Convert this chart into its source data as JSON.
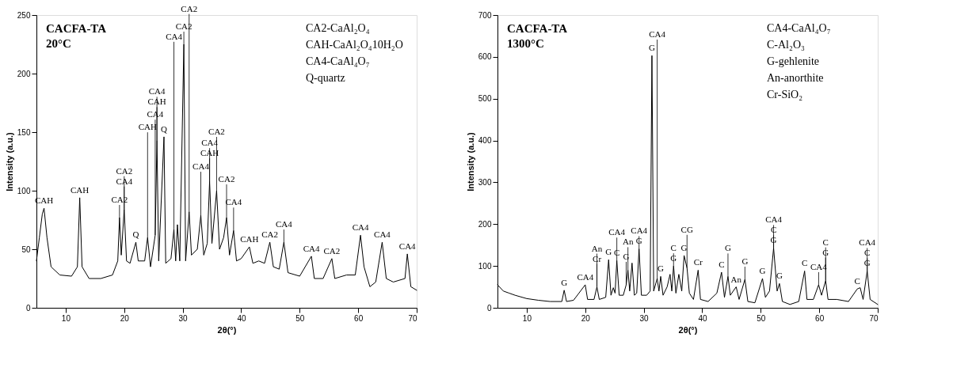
{
  "chart_data": [
    {
      "type": "line",
      "title": "CACFA-TA",
      "subtitle": "20°C",
      "xlabel": "2θ(°)",
      "ylabel": "Intensity (a.u.)",
      "xlim": [
        5,
        70
      ],
      "ylim": [
        0,
        250
      ],
      "xticks": [
        10,
        20,
        30,
        40,
        50,
        60,
        70
      ],
      "yticks": [
        0,
        50,
        100,
        150,
        200,
        250
      ],
      "grid": false,
      "series": [
        {
          "color": "#000000",
          "x": [
            5,
            5.5,
            6,
            6.3,
            6.8,
            7.5,
            9,
            11,
            12,
            12.4,
            12.8,
            14,
            16,
            18,
            18.9,
            19.2,
            19.5,
            20,
            20.4,
            21,
            22,
            22.4,
            23.5,
            24,
            24.5,
            25.3,
            25.6,
            25.9,
            26.8,
            27.1,
            28,
            28.5,
            28.8,
            29.1,
            29.5,
            30.2,
            30.5,
            31.1,
            31.5,
            32.5,
            33.1,
            33.6,
            34.2,
            34.6,
            35,
            35.8,
            36.3,
            37,
            37.5,
            38,
            38.7,
            39.2,
            40,
            41.4,
            42,
            43,
            44,
            44.9,
            45.5,
            46.5,
            47.3,
            48,
            50,
            52,
            52.5,
            54,
            55.5,
            56,
            58,
            59.5,
            60.4,
            61,
            62,
            63,
            64.1,
            64.8,
            66,
            68,
            68.4,
            69,
            70
          ],
          "values": [
            40,
            60,
            80,
            85,
            60,
            35,
            28,
            27,
            35,
            94,
            35,
            25,
            25,
            28,
            40,
            77,
            45,
            84,
            40,
            38,
            56,
            40,
            40,
            60,
            35,
            62,
            143,
            40,
            146,
            38,
            42,
            67,
            40,
            71,
            40,
            225,
            40,
            82,
            45,
            50,
            79,
            45,
            55,
            108,
            55,
            100,
            50,
            60,
            77,
            45,
            66,
            40,
            42,
            52,
            38,
            40,
            38,
            56,
            35,
            33,
            56,
            30,
            27,
            44,
            25,
            25,
            42,
            25,
            28,
            28,
            62,
            35,
            18,
            22,
            56,
            25,
            22,
            25,
            46,
            18,
            15
          ]
        }
      ],
      "annotations": [
        "CA2-CaAl₂O₄",
        "CAH-CaAl₂O₄10H₂O",
        "CA4-CaAl₄O₇",
        "Q-quartz",
        {
          "text": "CAH",
          "x": 6.3,
          "y": 85
        },
        {
          "text": "CAH",
          "x": 12.4,
          "y": 94
        },
        {
          "text": "CA2",
          "x": 19.2,
          "y": 77
        },
        {
          "text": "CA4",
          "x": 20.0,
          "y": 84
        },
        {
          "text": "CA2",
          "x": 20.0,
          "y": 84
        },
        {
          "text": "Q",
          "x": 22.0,
          "y": 56
        },
        {
          "text": "CAH",
          "x": 24.0,
          "y": 60
        },
        {
          "text": "CA4",
          "x": 25.3,
          "y": 62
        },
        {
          "text": "CAH",
          "x": 25.6,
          "y": 143
        },
        {
          "text": "CA4",
          "x": 25.6,
          "y": 143
        },
        {
          "text": "Q",
          "x": 26.8,
          "y": 146
        },
        {
          "text": "CA4",
          "x": 28.5,
          "y": 67
        },
        {
          "text": "CA2",
          "x": 30.2,
          "y": 225
        },
        {
          "text": "CA2",
          "x": 31.1,
          "y": 82
        },
        {
          "text": "CA4",
          "x": 33.1,
          "y": 79
        },
        {
          "text": "CAH",
          "x": 34.6,
          "y": 108
        },
        {
          "text": "CA4",
          "x": 34.6,
          "y": 108
        },
        {
          "text": "CA2",
          "x": 35.8,
          "y": 100
        },
        {
          "text": "CA2",
          "x": 37.5,
          "y": 77
        },
        {
          "text": "CA4",
          "x": 38.7,
          "y": 66
        },
        {
          "text": "CAH",
          "x": 41.4,
          "y": 52
        },
        {
          "text": "CA2",
          "x": 44.9,
          "y": 56
        },
        {
          "text": "CA4",
          "x": 47.3,
          "y": 56
        },
        {
          "text": "CA4",
          "x": 52.0,
          "y": 44
        },
        {
          "text": "CA2",
          "x": 55.5,
          "y": 42
        },
        {
          "text": "CA4",
          "x": 60.4,
          "y": 62
        },
        {
          "text": "CA4",
          "x": 64.1,
          "y": 56
        },
        {
          "text": "CA4",
          "x": 68.4,
          "y": 46
        }
      ]
    },
    {
      "type": "line",
      "title": "CACFA-TA",
      "subtitle": "1300°C",
      "xlabel": "2θ(°)",
      "ylabel": "Intensity (a.u.)",
      "xlim": [
        5,
        70
      ],
      "ylim": [
        0,
        700
      ],
      "xticks": [
        10,
        20,
        30,
        40,
        50,
        60,
        70
      ],
      "yticks": [
        0,
        100,
        200,
        300,
        400,
        500,
        600,
        700
      ],
      "grid": false,
      "series": [
        {
          "color": "#000000",
          "x": [
            5,
            6,
            7,
            8,
            10,
            12,
            14,
            16,
            16.4,
            16.8,
            18,
            20,
            20.4,
            21.5,
            22,
            22.4,
            23.5,
            24,
            24.4,
            24.8,
            25.1,
            25.4,
            25.8,
            26.5,
            27,
            27.3,
            27.6,
            28,
            28.4,
            28.8,
            29.2,
            29.6,
            30.5,
            31.1,
            31.4,
            31.7,
            32.3,
            32.6,
            32.9,
            33.3,
            34,
            34.5,
            34.8,
            35.1,
            35.5,
            36,
            36.5,
            36.9,
            37.4,
            37.8,
            38.5,
            39.3,
            39.7,
            41,
            42.5,
            43.3,
            43.8,
            44.4,
            44.8,
            45.8,
            46.3,
            47.3,
            47.8,
            49,
            50.3,
            50.8,
            51.5,
            52.2,
            52.8,
            53.2,
            53.7,
            55,
            56.5,
            57.5,
            57.9,
            59,
            59.9,
            60.4,
            61.1,
            61.5,
            63,
            65,
            66.5,
            67,
            67.5,
            68.2,
            68.7,
            70
          ],
          "values": [
            55,
            40,
            35,
            30,
            22,
            18,
            15,
            15,
            42,
            15,
            18,
            55,
            20,
            20,
            50,
            20,
            25,
            115,
            30,
            48,
            35,
            113,
            30,
            30,
            55,
            90,
            40,
            107,
            30,
            35,
            141,
            30,
            30,
            40,
            603,
            40,
            70,
            40,
            75,
            30,
            50,
            80,
            40,
            100,
            35,
            80,
            40,
            125,
            95,
            35,
            20,
            90,
            20,
            15,
            35,
            85,
            25,
            75,
            30,
            50,
            20,
            68,
            15,
            12,
            70,
            25,
            40,
            143,
            40,
            58,
            15,
            8,
            15,
            88,
            20,
            20,
            55,
            30,
            65,
            20,
            20,
            15,
            45,
            48,
            20,
            88,
            20,
            8
          ]
        }
      ],
      "annotations": [
        "CA4-CaAl₄O₇",
        "C-Al₂O₃",
        "G-gehlenite",
        "An-anorthite",
        "Cr-SiO₂",
        {
          "text": "G",
          "x": 16.4,
          "y": 42
        },
        {
          "text": "CA4",
          "x": 20.0,
          "y": 55
        },
        {
          "text": "Cr",
          "x": 22.0,
          "y": 50
        },
        {
          "text": "An",
          "x": 22.0,
          "y": 50
        },
        {
          "text": "G",
          "x": 24.0,
          "y": 115
        },
        {
          "text": "C",
          "x": 25.4,
          "y": 113
        },
        {
          "text": "CA4",
          "x": 25.4,
          "y": 113
        },
        {
          "text": "G",
          "x": 27.0,
          "y": 55
        },
        {
          "text": "An",
          "x": 27.3,
          "y": 90
        },
        {
          "text": "G",
          "x": 29.2,
          "y": 141
        },
        {
          "text": "CA4",
          "x": 29.2,
          "y": 141
        },
        {
          "text": "G",
          "x": 31.4,
          "y": 603
        },
        {
          "text": "CA4",
          "x": 32.3,
          "y": 70
        },
        {
          "text": "G",
          "x": 32.9,
          "y": 75
        },
        {
          "text": "G",
          "x": 35.1,
          "y": 100
        },
        {
          "text": "C",
          "x": 35.1,
          "y": 100
        },
        {
          "text": "G",
          "x": 36.9,
          "y": 125
        },
        {
          "text": "CG",
          "x": 37.4,
          "y": 95
        },
        {
          "text": "Cr",
          "x": 39.3,
          "y": 90
        },
        {
          "text": "C",
          "x": 43.3,
          "y": 85
        },
        {
          "text": "G",
          "x": 44.4,
          "y": 75
        },
        {
          "text": "An",
          "x": 45.8,
          "y": 50
        },
        {
          "text": "G",
          "x": 47.3,
          "y": 68
        },
        {
          "text": "G",
          "x": 50.3,
          "y": 70
        },
        {
          "text": "G",
          "x": 52.2,
          "y": 143
        },
        {
          "text": "C",
          "x": 52.2,
          "y": 143
        },
        {
          "text": "CA4",
          "x": 52.2,
          "y": 143
        },
        {
          "text": "G",
          "x": 53.2,
          "y": 58
        },
        {
          "text": "C",
          "x": 57.5,
          "y": 88
        },
        {
          "text": "CA4",
          "x": 59.9,
          "y": 55
        },
        {
          "text": "G",
          "x": 61.1,
          "y": 65
        },
        {
          "text": "C",
          "x": 61.1,
          "y": 65
        },
        {
          "text": "C",
          "x": 66.5,
          "y": 45
        },
        {
          "text": "G",
          "x": 68.2,
          "y": 88
        },
        {
          "text": "C",
          "x": 68.2,
          "y": 88
        },
        {
          "text": "CA4",
          "x": 68.2,
          "y": 88
        }
      ]
    }
  ]
}
